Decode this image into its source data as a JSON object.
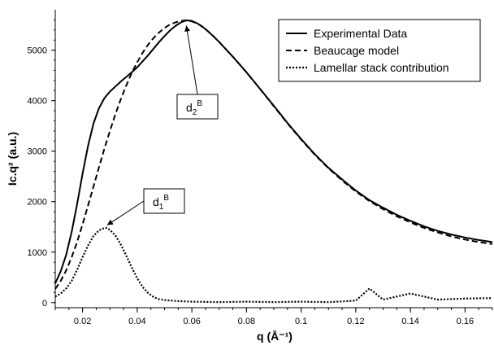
{
  "chart_data": {
    "type": "line",
    "xlabel": "q (Å⁻¹)",
    "ylabel": "Ic.q² (a.u.)",
    "xlim": [
      0.01,
      0.17
    ],
    "ylim": [
      -100,
      5800
    ],
    "xticks": [
      0.02,
      0.04,
      0.06,
      0.08,
      0.1,
      0.12,
      0.14,
      0.16
    ],
    "xtick_labels": [
      "0.02",
      "0.04",
      "0.06",
      "0.08",
      "0.1",
      "0.12",
      "0.14",
      "0.16"
    ],
    "yticks": [
      0,
      1000,
      2000,
      3000,
      4000,
      5000
    ],
    "ytick_labels": [
      "0",
      "1000",
      "2000",
      "3000",
      "4000",
      "5000"
    ],
    "grid": false,
    "legend_position": "top-right",
    "series": [
      {
        "name": "Experimental Data",
        "style": "solid",
        "x": [
          0.01,
          0.012,
          0.014,
          0.016,
          0.018,
          0.02,
          0.022,
          0.024,
          0.026,
          0.028,
          0.03,
          0.032,
          0.034,
          0.036,
          0.038,
          0.04,
          0.042,
          0.044,
          0.046,
          0.048,
          0.05,
          0.052,
          0.054,
          0.056,
          0.058,
          0.06,
          0.062,
          0.064,
          0.066,
          0.068,
          0.07,
          0.075,
          0.08,
          0.085,
          0.09,
          0.095,
          0.1,
          0.105,
          0.11,
          0.115,
          0.12,
          0.125,
          0.13,
          0.135,
          0.14,
          0.145,
          0.15,
          0.155,
          0.16,
          0.165,
          0.17
        ],
        "y": [
          380,
          620,
          950,
          1400,
          1950,
          2550,
          3100,
          3550,
          3850,
          4050,
          4180,
          4280,
          4380,
          4470,
          4560,
          4660,
          4780,
          4900,
          5030,
          5160,
          5280,
          5390,
          5480,
          5550,
          5590,
          5580,
          5530,
          5460,
          5370,
          5270,
          5160,
          4870,
          4560,
          4230,
          3900,
          3560,
          3240,
          2940,
          2670,
          2440,
          2220,
          2030,
          1880,
          1740,
          1620,
          1510,
          1420,
          1350,
          1290,
          1240,
          1200
        ]
      },
      {
        "name": "Beaucage model",
        "style": "dashed",
        "x": [
          0.01,
          0.012,
          0.014,
          0.016,
          0.018,
          0.02,
          0.022,
          0.024,
          0.026,
          0.028,
          0.03,
          0.032,
          0.034,
          0.036,
          0.038,
          0.04,
          0.042,
          0.044,
          0.046,
          0.048,
          0.05,
          0.052,
          0.054,
          0.056,
          0.058,
          0.06,
          0.062,
          0.064,
          0.066,
          0.068,
          0.07,
          0.075,
          0.08,
          0.085,
          0.09,
          0.095,
          0.1,
          0.105,
          0.11,
          0.115,
          0.12,
          0.125,
          0.13,
          0.135,
          0.14,
          0.145,
          0.15,
          0.155,
          0.16,
          0.165,
          0.17
        ],
        "y": [
          270,
          430,
          640,
          900,
          1200,
          1550,
          1920,
          2300,
          2680,
          3050,
          3400,
          3730,
          4030,
          4300,
          4550,
          4760,
          4950,
          5110,
          5240,
          5350,
          5440,
          5510,
          5550,
          5580,
          5590,
          5570,
          5530,
          5460,
          5370,
          5270,
          5160,
          4870,
          4560,
          4230,
          3890,
          3550,
          3230,
          2930,
          2660,
          2420,
          2200,
          2010,
          1850,
          1710,
          1590,
          1480,
          1390,
          1310,
          1250,
          1200,
          1160
        ]
      },
      {
        "name": "Lamellar stack contribution",
        "style": "dotted",
        "x": [
          0.01,
          0.012,
          0.014,
          0.016,
          0.018,
          0.02,
          0.022,
          0.024,
          0.026,
          0.028,
          0.029,
          0.03,
          0.032,
          0.034,
          0.036,
          0.038,
          0.04,
          0.042,
          0.044,
          0.046,
          0.048,
          0.05,
          0.055,
          0.06,
          0.07,
          0.08,
          0.09,
          0.1,
          0.11,
          0.12,
          0.125,
          0.13,
          0.14,
          0.15,
          0.16,
          0.17
        ],
        "y": [
          120,
          180,
          280,
          430,
          650,
          900,
          1130,
          1320,
          1430,
          1480,
          1480,
          1440,
          1330,
          1150,
          930,
          700,
          480,
          310,
          190,
          110,
          70,
          50,
          30,
          20,
          10,
          20,
          10,
          20,
          10,
          40,
          280,
          60,
          180,
          60,
          80,
          90
        ]
      }
    ],
    "annotations": [
      {
        "label": "d",
        "subscript": "2",
        "superscript": "B",
        "points_to": [
          0.058,
          5550
        ]
      },
      {
        "label": "d",
        "subscript": "1",
        "superscript": "B",
        "points_to": [
          0.029,
          1600
        ]
      }
    ]
  }
}
